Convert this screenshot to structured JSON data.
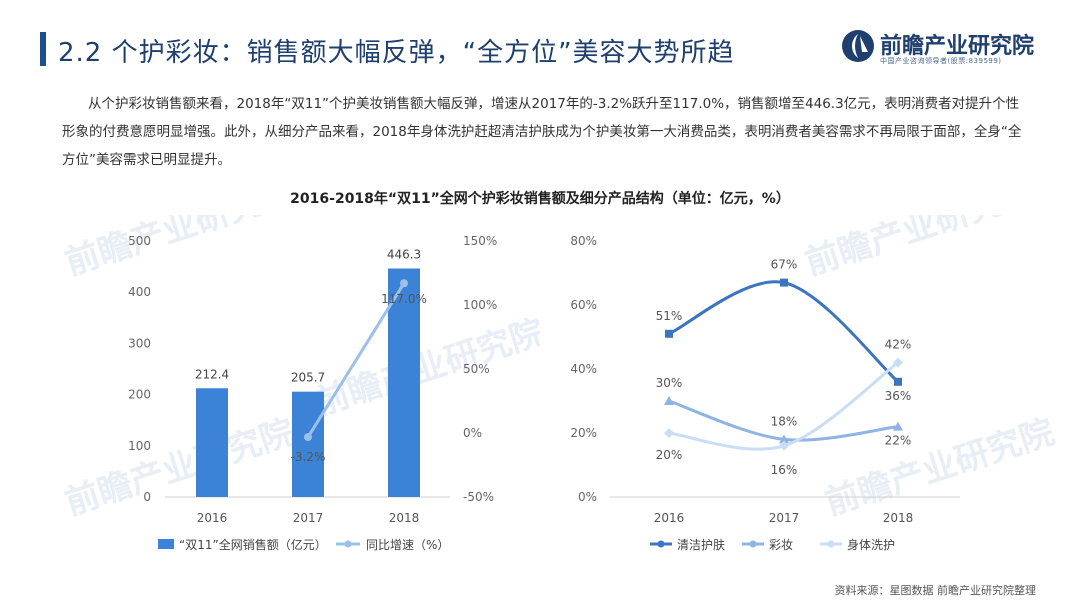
{
  "header": {
    "title": "2.2 个护彩妆：销售额大幅反弹，“全方位”美容大势所趋",
    "logo_name": "前瞻产业研究院",
    "logo_sub": "中国产业咨询领导者(股票:839599)"
  },
  "intro": "从个护彩妆销售额来看，2018年“双11”个护美妆销售额大幅反弹，增速从2017年的-3.2%跃升至117.0%，销售额增至446.3亿元，表明消费者对提升个性形象的付费意愿明显增强。此外，从细分产品来看，2018年身体洗护赶超清洁护肤成为个护美妆第一大消费品类，表明消费者美容需求不再局限于面部，全身“全方位”美容需求已明显提升。",
  "source": "资料来源：星图数据 前瞻产业研究院整理",
  "colors": {
    "bar": "#3c82d6",
    "growth": "#9cc0ea",
    "clean": "#3c74c0",
    "makeup": "#8fb4e3",
    "body": "#c9ddf5",
    "title": "#1f3f6e"
  },
  "chart_data": [
    {
      "type": "bar",
      "title": "2016-2018年“双11”全网个护彩妆销售额及细分产品结构（单位：亿元，%）",
      "categories": [
        "2016",
        "2017",
        "2018"
      ],
      "series": [
        {
          "name": "“双11”全网销售额（亿元）",
          "type": "bar",
          "axis": "left",
          "values": [
            212.4,
            205.7,
            446.3
          ],
          "labels": [
            "212.4",
            "205.7",
            "446.3"
          ]
        },
        {
          "name": "同比增速（%）",
          "type": "line",
          "axis": "right",
          "values": [
            null,
            -3.2,
            117.0
          ],
          "labels": [
            "",
            "-3.2%",
            "117.0%"
          ]
        }
      ],
      "ylim": [
        0,
        500
      ],
      "yticks": [
        "0",
        "100",
        "200",
        "300",
        "400",
        "500"
      ],
      "y2lim": [
        -50,
        150
      ],
      "y2ticks": [
        "-50%",
        "0%",
        "50%",
        "100%",
        "150%"
      ],
      "legend": "bottom"
    },
    {
      "type": "line",
      "categories": [
        "2016",
        "2017",
        "2018"
      ],
      "series": [
        {
          "name": "清洁护肤",
          "values": [
            51,
            67,
            36
          ],
          "labels": [
            "51%",
            "67%",
            "36%"
          ]
        },
        {
          "name": "彩妆",
          "values": [
            30,
            18,
            22
          ],
          "labels": [
            "30%",
            "18%",
            "22%"
          ]
        },
        {
          "name": "身体洗护",
          "values": [
            20,
            16,
            42
          ],
          "labels": [
            "20%",
            "16%",
            "42%"
          ]
        }
      ],
      "ylim": [
        0,
        80
      ],
      "yticks": [
        "0%",
        "20%",
        "40%",
        "60%",
        "80%"
      ],
      "legend": "bottom"
    }
  ]
}
